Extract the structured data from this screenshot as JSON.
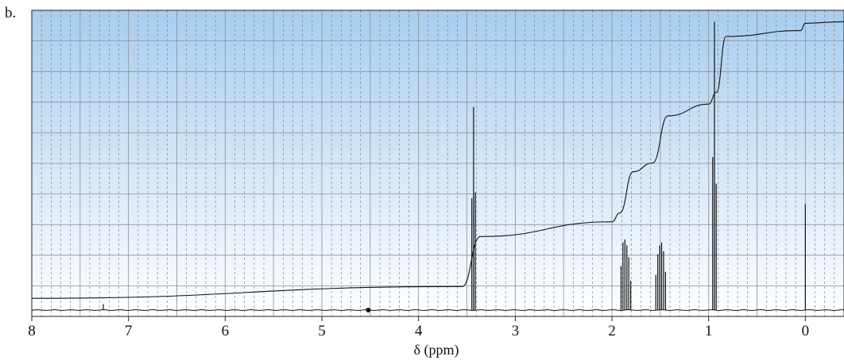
{
  "panel_label": "b.",
  "colors": {
    "background_top": "#a9cdee",
    "background_bottom": "#ffffff",
    "grid_major": "#8a8f96",
    "grid_minor": "#6e747c",
    "trace": "#111111"
  },
  "chart_data": {
    "type": "line",
    "xlabel": "δ (ppm)",
    "xlim": [
      8,
      -0.4
    ],
    "x_reversed": true,
    "x_ticks": [
      8,
      7,
      6,
      5,
      4,
      3,
      2,
      1,
      0
    ],
    "x_tick_labels": [
      "8",
      "7",
      "6",
      "5",
      "4",
      "3",
      "2",
      "1",
      "0"
    ],
    "ylim": [
      0,
      1
    ],
    "grid": "on",
    "major_grid_x_step": 0.5,
    "minor_grid_x_step": 0.1,
    "major_grid_y_step": 0.1,
    "series": [
      {
        "role": "spectrum",
        "peaks": [
          {
            "shift": 3.449,
            "height": 0.38
          },
          {
            "shift": 3.431,
            "height": 0.69
          },
          {
            "shift": 3.413,
            "height": 0.4
          },
          {
            "shift": 1.906,
            "height": 0.15
          },
          {
            "shift": 1.886,
            "height": 0.23
          },
          {
            "shift": 1.866,
            "height": 0.24
          },
          {
            "shift": 1.846,
            "height": 0.22
          },
          {
            "shift": 1.826,
            "height": 0.18
          },
          {
            "shift": 1.806,
            "height": 0.1
          },
          {
            "shift": 1.546,
            "height": 0.12
          },
          {
            "shift": 1.526,
            "height": 0.19
          },
          {
            "shift": 1.506,
            "height": 0.22
          },
          {
            "shift": 1.486,
            "height": 0.23
          },
          {
            "shift": 1.466,
            "height": 0.2
          },
          {
            "shift": 1.446,
            "height": 0.13
          },
          {
            "shift": 0.958,
            "height": 0.52
          },
          {
            "shift": 0.94,
            "height": 0.98
          },
          {
            "shift": 0.922,
            "height": 0.43
          },
          {
            "shift": 0.0,
            "height": 0.36
          },
          {
            "shift": 7.26,
            "height": 0.02
          }
        ]
      },
      {
        "role": "integration",
        "x": [
          8.0,
          3.55,
          3.36,
          2.0,
          1.92,
          1.78,
          1.58,
          1.42,
          1.0,
          0.92,
          0.82,
          0.05,
          0.0,
          -0.4
        ],
        "y": [
          0.04,
          0.08,
          0.25,
          0.3,
          0.33,
          0.47,
          0.5,
          0.66,
          0.7,
          0.74,
          0.93,
          0.95,
          0.975,
          0.98
        ]
      }
    ],
    "markers": [
      {
        "shift": 4.52,
        "y": 0.0
      }
    ]
  }
}
